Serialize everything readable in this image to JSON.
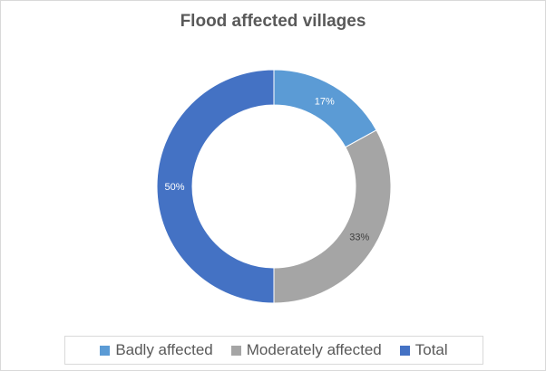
{
  "chart_data": {
    "type": "pie",
    "variant": "donut",
    "title": "Flood affected villages",
    "categories": [
      "Badly affected",
      "Moderately affected",
      "Total"
    ],
    "values": [
      17,
      33,
      50
    ],
    "data_labels": [
      "17%",
      "33%",
      "50%"
    ],
    "colors": [
      "#5B9BD5",
      "#A5A5A5",
      "#4472C4"
    ],
    "legend_position": "bottom"
  }
}
